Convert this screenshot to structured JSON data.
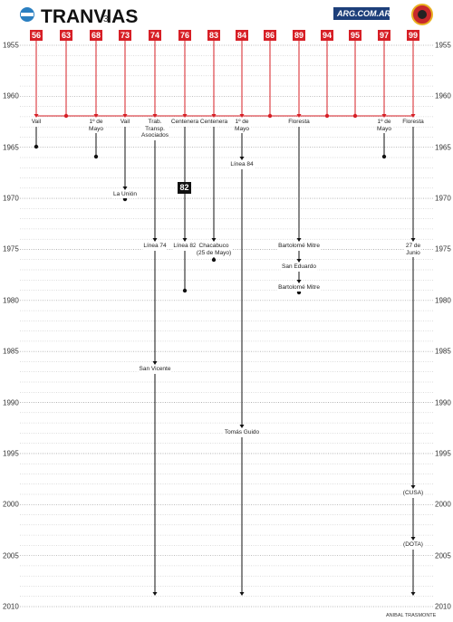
{
  "header": {
    "title": "TRANVIAS",
    "issue": "3",
    "logo_text": "ARG.COM.AR"
  },
  "years": [
    1955,
    1960,
    1965,
    1970,
    1975,
    1980,
    1985,
    1990,
    1995,
    2000,
    2005,
    2010
  ],
  "lines": [
    {
      "number": "56",
      "events": [
        "Vail"
      ]
    },
    {
      "number": "63",
      "events": []
    },
    {
      "number": "68",
      "events": [
        "1º de\nMayo"
      ]
    },
    {
      "number": "73",
      "events": [
        "Vail",
        "La Unión"
      ]
    },
    {
      "number": "74",
      "events": [
        "Trab.\nTransp.\nAsociados",
        "Línea 74",
        "San Vicente"
      ]
    },
    {
      "number": "76",
      "events": [
        "Centenera",
        "Línea 82"
      ]
    },
    {
      "number": "83",
      "events": [
        "Centenera",
        "Chacabuco\n(25 de Mayo)"
      ]
    },
    {
      "number": "84",
      "events": [
        "1º de\nMayo",
        "Línea 84",
        "Tomás Guido"
      ]
    },
    {
      "number": "86",
      "events": []
    },
    {
      "number": "89",
      "events": [
        "Floresta",
        "Bartolomé Mitre",
        "San Eduardo",
        "Bartolomé Mitre"
      ]
    },
    {
      "number": "94",
      "events": []
    },
    {
      "number": "95",
      "events": []
    },
    {
      "number": "97",
      "events": [
        "1º de\nMayo"
      ]
    },
    {
      "number": "99",
      "events": [
        "Floresta",
        "27 de\nJunio",
        "(CUSA)",
        "(DOTA)"
      ]
    }
  ],
  "badge": "82",
  "credit": "ANIBAL TRASMONTE"
}
